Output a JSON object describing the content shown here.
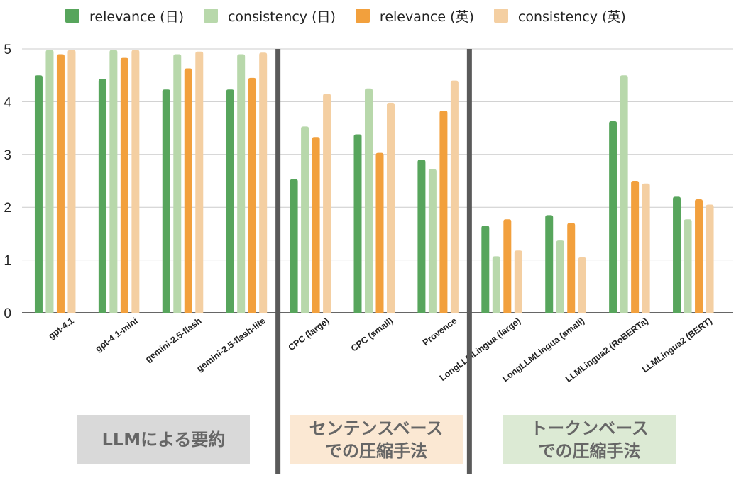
{
  "legend": [
    {
      "label": "relevance (日)",
      "color": "#57a55c"
    },
    {
      "label": "consistency (日)",
      "color": "#b8d8ab"
    },
    {
      "label": "relevance (英)",
      "color": "#f2a03d"
    },
    {
      "label": "consistency (英)",
      "color": "#f4cfa2"
    }
  ],
  "groups": [
    {
      "label": "LLMによる要約",
      "bg": "#d9d9d9",
      "color": "#666666"
    },
    {
      "label": "センテンスベース\nでの圧縮手法",
      "bg": "#fbe8d3",
      "color": "#666666"
    },
    {
      "label": "トークンベース\nでの圧縮手法",
      "bg": "#dcead4",
      "color": "#666666"
    }
  ],
  "chart_data": {
    "type": "bar",
    "title": "",
    "xlabel": "",
    "ylabel": "",
    "ylim": [
      0,
      5
    ],
    "yticks": [
      0,
      1,
      2,
      3,
      4,
      5
    ],
    "grid": true,
    "legend_position": "top",
    "categories": [
      "gpt-4.1",
      "gpt-4.1-mini",
      "gemini-2.5-flash",
      "gemini-2.5-flash-lite",
      "CPC (large)",
      "CPC (small)",
      "Provence",
      "LongLLMLingua (large)",
      "LongLLMLingua (small)",
      "LLMLingua2 (RoBERTa)",
      "LLMLingua2 (BERT)"
    ],
    "series": [
      {
        "name": "relevance (日)",
        "color": "#57a55c",
        "values": [
          4.5,
          4.43,
          4.23,
          4.23,
          2.53,
          3.38,
          2.9,
          1.65,
          1.85,
          3.63,
          2.2
        ]
      },
      {
        "name": "consistency (日)",
        "color": "#b8d8ab",
        "values": [
          4.98,
          4.98,
          4.9,
          4.9,
          3.53,
          4.25,
          2.72,
          1.07,
          1.37,
          4.5,
          1.77
        ]
      },
      {
        "name": "relevance (英)",
        "color": "#f2a03d",
        "values": [
          4.9,
          4.83,
          4.63,
          4.45,
          3.33,
          3.03,
          3.83,
          1.77,
          1.7,
          2.5,
          2.15
        ]
      },
      {
        "name": "consistency (英)",
        "color": "#f4cfa2",
        "values": [
          4.98,
          4.98,
          4.95,
          4.93,
          4.15,
          3.98,
          4.4,
          1.18,
          1.05,
          2.45,
          2.05
        ]
      }
    ],
    "group_boundaries_after": [
      3,
      6
    ]
  }
}
